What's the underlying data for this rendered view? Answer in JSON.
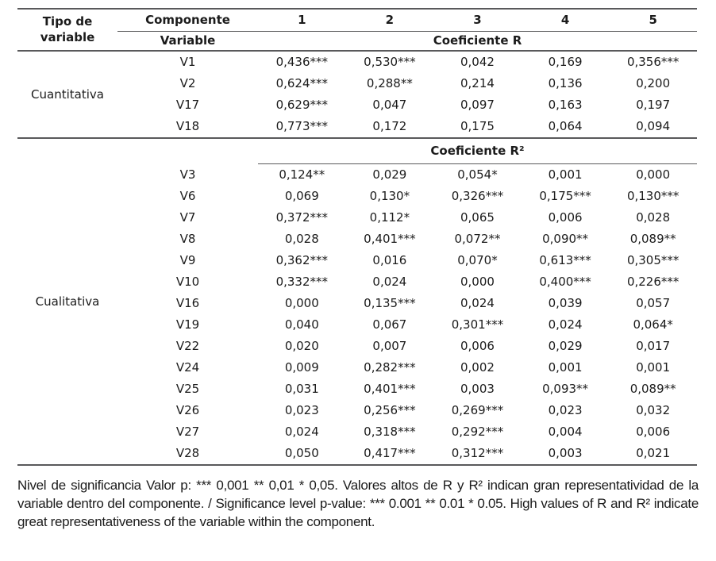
{
  "table": {
    "header": {
      "tipo": "Tipo de variable",
      "componente": "Componente",
      "components": [
        "1",
        "2",
        "3",
        "4",
        "5"
      ],
      "variable": "Variable",
      "coef_r": "Coeficiente R"
    },
    "sections": [
      {
        "tipo": "Cuantitativa",
        "rows": [
          {
            "variable": "V1",
            "values": [
              "0,436***",
              "0,530***",
              "0,042",
              "0,169",
              "0,356***"
            ]
          },
          {
            "variable": "V2",
            "values": [
              "0,624***",
              "0,288**",
              "0,214",
              "0,136",
              "0,200"
            ]
          },
          {
            "variable": "V17",
            "values": [
              "0,629***",
              "0,047",
              "0,097",
              "0,163",
              "0,197"
            ]
          },
          {
            "variable": "V18",
            "values": [
              "0,773***",
              "0,172",
              "0,175",
              "0,064",
              "0,094"
            ]
          }
        ]
      },
      {
        "tipo": "Cualitativa",
        "coef_header": "Coeficiente R²",
        "rows": [
          {
            "variable": "V3",
            "values": [
              "0,124**",
              "0,029",
              "0,054*",
              "0,001",
              "0,000"
            ]
          },
          {
            "variable": "V6",
            "values": [
              "0,069",
              "0,130*",
              "0,326***",
              "0,175***",
              "0,130***"
            ]
          },
          {
            "variable": "V7",
            "values": [
              "0,372***",
              "0,112*",
              "0,065",
              "0,006",
              "0,028"
            ]
          },
          {
            "variable": "V8",
            "values": [
              "0,028",
              "0,401***",
              "0,072**",
              "0,090**",
              "0,089**"
            ]
          },
          {
            "variable": "V9",
            "values": [
              "0,362***",
              "0,016",
              "0,070*",
              "0,613***",
              "0,305***"
            ]
          },
          {
            "variable": "V10",
            "values": [
              "0,332***",
              "0,024",
              "0,000",
              "0,400***",
              "0,226***"
            ]
          },
          {
            "variable": "V16",
            "values": [
              "0,000",
              "0,135***",
              "0,024",
              "0,039",
              "0,057"
            ]
          },
          {
            "variable": "V19",
            "values": [
              "0,040",
              "0,067",
              "0,301***",
              "0,024",
              "0,064*"
            ]
          },
          {
            "variable": "V22",
            "values": [
              "0,020",
              "0,007",
              "0,006",
              "0,029",
              "0,017"
            ]
          },
          {
            "variable": "V24",
            "values": [
              "0,009",
              "0,282***",
              "0,002",
              "0,001",
              "0,001"
            ]
          },
          {
            "variable": "V25",
            "values": [
              "0,031",
              "0,401***",
              "0,003",
              "0,093**",
              "0,089**"
            ]
          },
          {
            "variable": "V26",
            "values": [
              "0,023",
              "0,256***",
              "0,269***",
              "0,023",
              "0,032"
            ]
          },
          {
            "variable": "V27",
            "values": [
              "0,024",
              "0,318***",
              "0,292***",
              "0,004",
              "0,006"
            ]
          },
          {
            "variable": "V28",
            "values": [
              "0,050",
              "0,417***",
              "0,312***",
              "0,003",
              "0,021"
            ]
          }
        ]
      }
    ]
  },
  "footnote": "Nivel de significancia Valor p: *** 0,001 ** 0,01 * 0,05. Valores altos de R y R² indican gran representatividad de la variable dentro del componente. / Significance level p-value: *** 0.001 ** 0.01 * 0.05. High values of R and R² indicate great representativeness of the variable within the component."
}
